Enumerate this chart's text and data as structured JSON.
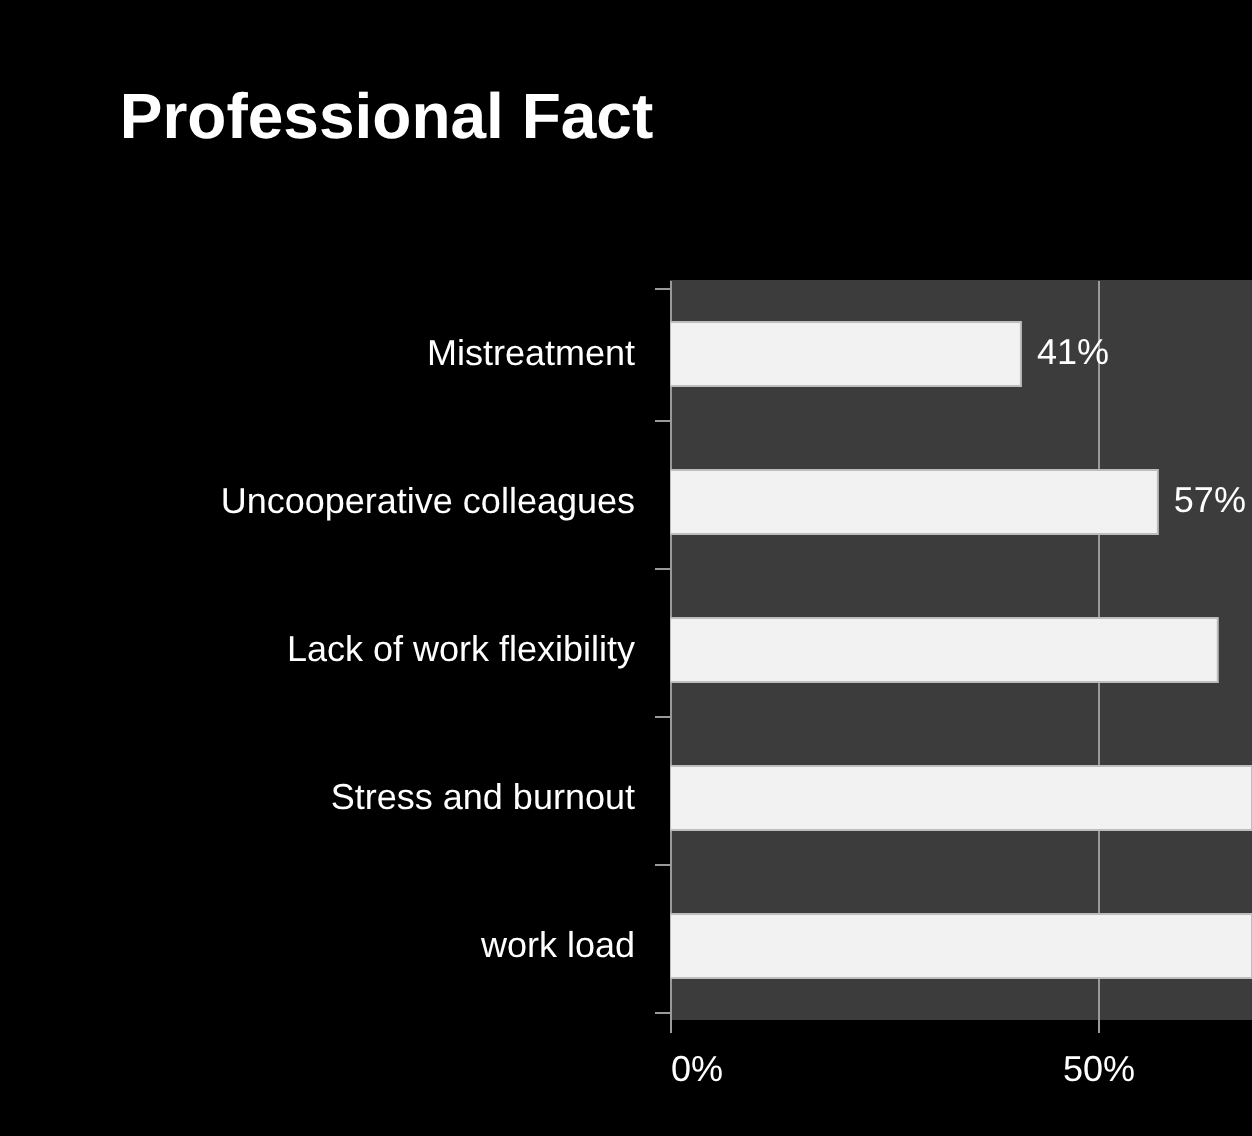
{
  "chart_data": {
    "type": "bar",
    "orientation": "horizontal",
    "title": "Professional Fact",
    "categories": [
      "Mistreatment",
      "Uncooperative  colleagues",
      "Lack of work  flexibility",
      "Stress and burnout",
      "work load"
    ],
    "values": [
      41,
      57,
      64,
      68,
      68
    ],
    "value_labels": [
      "41%",
      "57%",
      null,
      null,
      null
    ],
    "color": "#f2f2f2",
    "xlim": [
      0,
      68
    ],
    "xticks": [
      {
        "value": 0,
        "label": "0%"
      },
      {
        "value": 50,
        "label": "50%"
      }
    ],
    "grid": "x"
  }
}
